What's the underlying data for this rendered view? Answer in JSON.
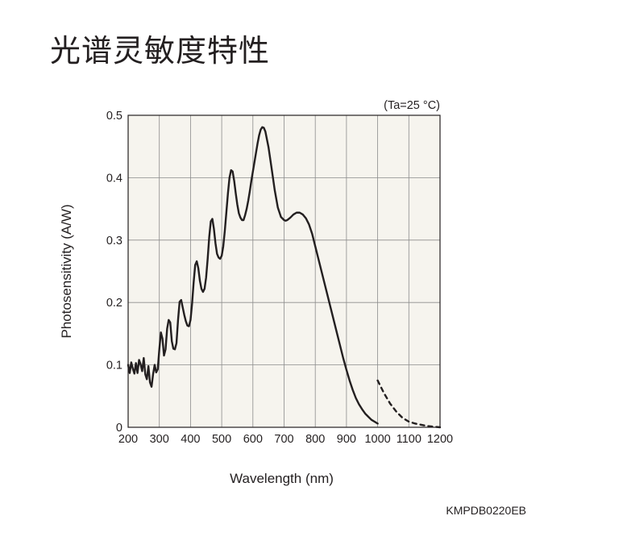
{
  "page": {
    "title": "光谱灵敏度特性"
  },
  "chart_data": {
    "type": "line",
    "title": "",
    "xlabel": "Wavelength (nm)",
    "ylabel": "Photosensitivity (A/W)",
    "condition": "(Ta=25 °C)",
    "figure_code": "KMPDB0220EB",
    "xlim": [
      200,
      1200
    ],
    "ylim": [
      0,
      0.5
    ],
    "x_ticks": [
      "200",
      "300",
      "400",
      "500",
      "600",
      "700",
      "800",
      "900",
      "1000",
      "1100",
      "1200"
    ],
    "y_ticks": [
      "0",
      "0.1",
      "0.2",
      "0.3",
      "0.4",
      "0.5"
    ],
    "grid": true,
    "colors": {
      "line": "#231f20",
      "plot_background": "#f6f4ee",
      "grid": "#8c8c8c"
    },
    "series": [
      {
        "style": "solid",
        "x": [
          200,
          205,
          210,
          215,
          220,
          225,
          230,
          235,
          240,
          245,
          250,
          255,
          260,
          265,
          270,
          275,
          280,
          285,
          290,
          295,
          300,
          305,
          310,
          315,
          320,
          325,
          330,
          335,
          340,
          345,
          350,
          355,
          360,
          365,
          370,
          375,
          380,
          385,
          390,
          395,
          400,
          405,
          410,
          415,
          420,
          425,
          430,
          435,
          440,
          445,
          450,
          455,
          460,
          465,
          470,
          475,
          480,
          485,
          490,
          495,
          500,
          505,
          510,
          515,
          520,
          525,
          530,
          535,
          540,
          545,
          550,
          555,
          560,
          565,
          570,
          575,
          580,
          585,
          590,
          595,
          600,
          605,
          610,
          615,
          620,
          625,
          630,
          635,
          640,
          650,
          660,
          670,
          680,
          690,
          700,
          705,
          710,
          720,
          730,
          740,
          750,
          760,
          770,
          780,
          790,
          800,
          810,
          820,
          830,
          840,
          850,
          860,
          870,
          880,
          890,
          900,
          910,
          920,
          930,
          940,
          950,
          960,
          970,
          980,
          990,
          1000
        ],
        "y": [
          0.1,
          0.087,
          0.104,
          0.094,
          0.086,
          0.103,
          0.087,
          0.108,
          0.101,
          0.09,
          0.111,
          0.085,
          0.077,
          0.098,
          0.072,
          0.065,
          0.085,
          0.1,
          0.088,
          0.093,
          0.125,
          0.152,
          0.142,
          0.115,
          0.125,
          0.158,
          0.172,
          0.168,
          0.138,
          0.126,
          0.125,
          0.135,
          0.172,
          0.201,
          0.204,
          0.192,
          0.18,
          0.17,
          0.163,
          0.162,
          0.172,
          0.198,
          0.232,
          0.26,
          0.266,
          0.255,
          0.235,
          0.222,
          0.217,
          0.222,
          0.24,
          0.27,
          0.305,
          0.33,
          0.334,
          0.318,
          0.295,
          0.278,
          0.272,
          0.27,
          0.275,
          0.29,
          0.315,
          0.345,
          0.375,
          0.4,
          0.412,
          0.41,
          0.395,
          0.375,
          0.357,
          0.343,
          0.336,
          0.332,
          0.332,
          0.34,
          0.35,
          0.363,
          0.378,
          0.395,
          0.41,
          0.425,
          0.44,
          0.455,
          0.468,
          0.477,
          0.481,
          0.48,
          0.474,
          0.449,
          0.415,
          0.38,
          0.352,
          0.337,
          0.332,
          0.331,
          0.332,
          0.336,
          0.341,
          0.344,
          0.344,
          0.341,
          0.335,
          0.325,
          0.31,
          0.29,
          0.27,
          0.25,
          0.23,
          0.21,
          0.19,
          0.17,
          0.15,
          0.13,
          0.11,
          0.092,
          0.075,
          0.06,
          0.047,
          0.037,
          0.029,
          0.022,
          0.017,
          0.012,
          0.009,
          0.006
        ]
      },
      {
        "style": "dashed",
        "x": [
          1000,
          1020,
          1040,
          1060,
          1080,
          1100,
          1120,
          1140,
          1160,
          1180,
          1200
        ],
        "y": [
          0.075,
          0.055,
          0.038,
          0.025,
          0.015,
          0.009,
          0.006,
          0.004,
          0.002,
          0.001,
          0.0
        ]
      }
    ]
  }
}
